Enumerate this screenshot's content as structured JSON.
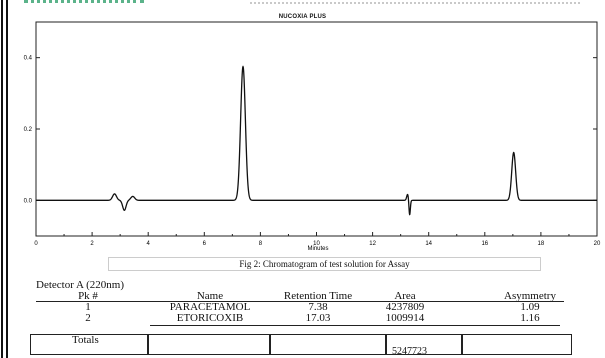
{
  "chart_data": {
    "type": "line",
    "title": "NUCOXIA PLUS",
    "xlabel": "Minutes",
    "ylabel": "",
    "xlim": [
      0,
      20
    ],
    "ylim": [
      -0.1,
      0.5
    ],
    "x_ticks": [
      "0",
      "2",
      "4",
      "6",
      "8",
      "10",
      "12",
      "14",
      "16",
      "18",
      "20"
    ],
    "y_ticks": [
      "0.0",
      "0.2",
      "0.4"
    ],
    "y_tick_values": [
      0.0,
      0.2,
      0.4
    ],
    "grid": false,
    "baseline": 0.0,
    "peaks": [
      {
        "x": 2.8,
        "height": 0.018,
        "width": 0.07
      },
      {
        "x": 3.15,
        "height": -0.028,
        "width": 0.06
      },
      {
        "x": 3.45,
        "height": 0.011,
        "width": 0.07
      },
      {
        "x": 7.38,
        "height": 0.375,
        "width": 0.085
      },
      {
        "x": 13.25,
        "height": 0.017,
        "width": 0.035
      },
      {
        "x": 13.32,
        "height": -0.042,
        "width": 0.025
      },
      {
        "x": 17.03,
        "height": 0.134,
        "width": 0.07
      }
    ]
  },
  "caption": "Fig 2: Chromatogram of test solution for Assay",
  "results": {
    "detector": "Detector A (220nm)",
    "headers": [
      "Pk #",
      "Name",
      "Retention Time",
      "Area",
      "Asymmetry"
    ],
    "rows": [
      [
        "1",
        "PARACETAMOL",
        "7.38",
        "4237809",
        "1.09"
      ],
      [
        "2",
        "ETORICOXIB",
        "17.03",
        "1009914",
        "1.16"
      ]
    ],
    "totals_label": "Totals",
    "totals_area": "5247723"
  }
}
